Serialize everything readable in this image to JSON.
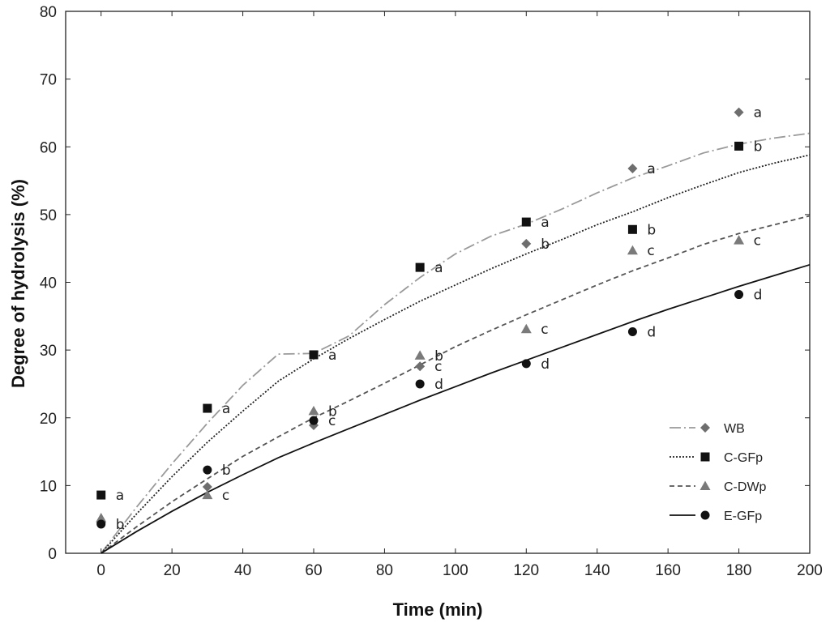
{
  "chart_data": {
    "type": "scatter",
    "title": "",
    "xlabel": "Time (min)",
    "ylabel": "Degree of hydrolysis (%)",
    "xlim": [
      -10,
      200
    ],
    "ylim": [
      0,
      80
    ],
    "xticks": [
      0,
      20,
      40,
      60,
      80,
      100,
      120,
      140,
      160,
      180,
      200
    ],
    "yticks": [
      0,
      10,
      20,
      30,
      40,
      50,
      60,
      70,
      80
    ],
    "grid": false,
    "legend_position": "bottom-right",
    "series": [
      {
        "name": "WB",
        "marker": "diamond",
        "color": "#6e6e6e",
        "line_style": "dash-dot",
        "line_color": "#9a9a9a",
        "points": [
          {
            "x": 0,
            "y": 4.5,
            "label": ""
          },
          {
            "x": 30,
            "y": 9.8,
            "label": ""
          },
          {
            "x": 60,
            "y": 18.9,
            "label": ""
          },
          {
            "x": 90,
            "y": 27.6,
            "label": "c"
          },
          {
            "x": 120,
            "y": 45.7,
            "label": "b"
          },
          {
            "x": 150,
            "y": 56.8,
            "label": "a"
          },
          {
            "x": 180,
            "y": 65.1,
            "label": "a"
          }
        ],
        "fit": [
          [
            0,
            0
          ],
          [
            10,
            6.8
          ],
          [
            20,
            13.2
          ],
          [
            30,
            19.2
          ],
          [
            40,
            24.8
          ],
          [
            50,
            29.4
          ],
          [
            60,
            29.5
          ],
          [
            70,
            32.1
          ],
          [
            80,
            36.7
          ],
          [
            90,
            40.7
          ],
          [
            100,
            44.2
          ],
          [
            110,
            46.8
          ],
          [
            120,
            48.6
          ],
          [
            130,
            50.8
          ],
          [
            140,
            53.2
          ],
          [
            150,
            55.4
          ],
          [
            160,
            57.2
          ],
          [
            170,
            59.1
          ],
          [
            180,
            60.4
          ],
          [
            190,
            61.3
          ],
          [
            200,
            62.0
          ]
        ]
      },
      {
        "name": "C-GFp",
        "marker": "square",
        "color": "#111111",
        "line_style": "dotted",
        "line_color": "#222222",
        "points": [
          {
            "x": 0,
            "y": 8.6,
            "label": "a"
          },
          {
            "x": 30,
            "y": 21.4,
            "label": "a"
          },
          {
            "x": 60,
            "y": 29.3,
            "label": "a"
          },
          {
            "x": 90,
            "y": 42.2,
            "label": "a"
          },
          {
            "x": 120,
            "y": 48.9,
            "label": "a"
          },
          {
            "x": 150,
            "y": 47.8,
            "label": "b"
          },
          {
            "x": 180,
            "y": 60.1,
            "label": "b"
          }
        ],
        "fit": [
          [
            0,
            0
          ],
          [
            10,
            5.8
          ],
          [
            20,
            11.3
          ],
          [
            30,
            16.4
          ],
          [
            40,
            21.0
          ],
          [
            50,
            25.4
          ],
          [
            60,
            28.7
          ],
          [
            70,
            31.7
          ],
          [
            80,
            34.5
          ],
          [
            90,
            37.2
          ],
          [
            100,
            39.6
          ],
          [
            110,
            42.0
          ],
          [
            120,
            44.2
          ],
          [
            130,
            46.3
          ],
          [
            140,
            48.5
          ],
          [
            150,
            50.4
          ],
          [
            160,
            52.5
          ],
          [
            170,
            54.4
          ],
          [
            180,
            56.2
          ],
          [
            190,
            57.6
          ],
          [
            200,
            58.8
          ]
        ]
      },
      {
        "name": "C-DWp",
        "marker": "triangle",
        "color": "#7a7a7a",
        "line_style": "dashed",
        "line_color": "#555555",
        "points": [
          {
            "x": 0,
            "y": 5.2,
            "label": ""
          },
          {
            "x": 30,
            "y": 8.6,
            "label": "c"
          },
          {
            "x": 60,
            "y": 21.0,
            "label": "b"
          },
          {
            "x": 90,
            "y": 29.2,
            "label": "b"
          },
          {
            "x": 120,
            "y": 33.1,
            "label": "c"
          },
          {
            "x": 150,
            "y": 44.7,
            "label": "c"
          },
          {
            "x": 180,
            "y": 46.2,
            "label": "c"
          }
        ],
        "fit": [
          [
            0,
            0
          ],
          [
            10,
            3.9
          ],
          [
            20,
            7.6
          ],
          [
            30,
            11.0
          ],
          [
            40,
            14.3
          ],
          [
            50,
            17.2
          ],
          [
            60,
            20.0
          ],
          [
            70,
            22.5
          ],
          [
            80,
            25.1
          ],
          [
            90,
            27.8
          ],
          [
            100,
            30.5
          ],
          [
            110,
            32.9
          ],
          [
            120,
            35.2
          ],
          [
            130,
            37.4
          ],
          [
            140,
            39.6
          ],
          [
            150,
            41.7
          ],
          [
            160,
            43.6
          ],
          [
            170,
            45.6
          ],
          [
            180,
            47.2
          ],
          [
            190,
            48.5
          ],
          [
            200,
            49.8
          ]
        ]
      },
      {
        "name": "E-GFp",
        "marker": "circle",
        "color": "#111111",
        "line_style": "solid",
        "line_color": "#111111",
        "points": [
          {
            "x": 0,
            "y": 4.3,
            "label": "b"
          },
          {
            "x": 30,
            "y": 12.3,
            "label": "b"
          },
          {
            "x": 60,
            "y": 19.6,
            "label": "c"
          },
          {
            "x": 90,
            "y": 25.0,
            "label": "d"
          },
          {
            "x": 120,
            "y": 28.0,
            "label": "d"
          },
          {
            "x": 150,
            "y": 32.7,
            "label": "d"
          },
          {
            "x": 180,
            "y": 38.2,
            "label": "d"
          }
        ],
        "fit": [
          [
            0,
            0
          ],
          [
            10,
            3.2
          ],
          [
            20,
            6.2
          ],
          [
            30,
            9.0
          ],
          [
            40,
            11.6
          ],
          [
            50,
            14.1
          ],
          [
            60,
            16.3
          ],
          [
            70,
            18.4
          ],
          [
            80,
            20.5
          ],
          [
            90,
            22.6
          ],
          [
            100,
            24.6
          ],
          [
            110,
            26.6
          ],
          [
            120,
            28.5
          ],
          [
            130,
            30.4
          ],
          [
            140,
            32.3
          ],
          [
            150,
            34.2
          ],
          [
            160,
            36.0
          ],
          [
            170,
            37.7
          ],
          [
            180,
            39.4
          ],
          [
            190,
            41.0
          ],
          [
            200,
            42.6
          ]
        ]
      }
    ]
  }
}
